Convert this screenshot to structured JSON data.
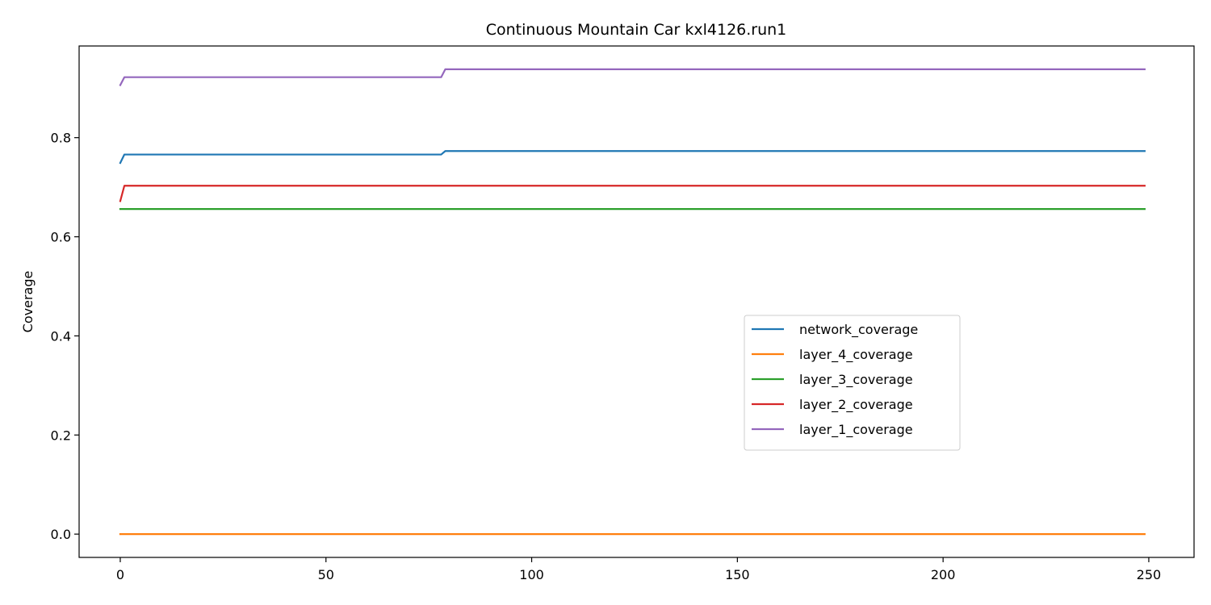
{
  "chart_data": {
    "type": "line",
    "title": "Continuous Mountain Car kxl4126.run1",
    "xlabel": "",
    "ylabel": "Coverage",
    "xlim": [
      -10,
      261
    ],
    "ylim": [
      -0.047,
      0.985
    ],
    "xticks": [
      0,
      50,
      100,
      150,
      200,
      250
    ],
    "yticks": [
      0.0,
      0.2,
      0.4,
      0.6,
      0.8
    ],
    "xtick_labels": [
      "0",
      "50",
      "100",
      "150",
      "200",
      "250"
    ],
    "ytick_labels": [
      "0.0",
      "0.2",
      "0.4",
      "0.6",
      "0.8"
    ],
    "grid": false,
    "legend_position": "center-right",
    "series": [
      {
        "name": "network_coverage",
        "color": "#1f77b4",
        "points": [
          [
            0,
            0.749
          ],
          [
            1,
            0.766
          ],
          [
            78,
            0.766
          ],
          [
            79,
            0.773
          ],
          [
            249,
            0.773
          ]
        ]
      },
      {
        "name": "layer_4_coverage",
        "color": "#ff7f0e",
        "points": [
          [
            0,
            0.0
          ],
          [
            249,
            0.0
          ]
        ]
      },
      {
        "name": "layer_3_coverage",
        "color": "#2ca02c",
        "points": [
          [
            0,
            0.656
          ],
          [
            249,
            0.656
          ]
        ]
      },
      {
        "name": "layer_2_coverage",
        "color": "#d62728",
        "points": [
          [
            0,
            0.672
          ],
          [
            1,
            0.703
          ],
          [
            249,
            0.703
          ]
        ]
      },
      {
        "name": "layer_1_coverage",
        "color": "#9467bd",
        "points": [
          [
            0,
            0.906
          ],
          [
            1,
            0.922
          ],
          [
            78,
            0.922
          ],
          [
            79,
            0.938
          ],
          [
            249,
            0.938
          ]
        ]
      }
    ]
  }
}
